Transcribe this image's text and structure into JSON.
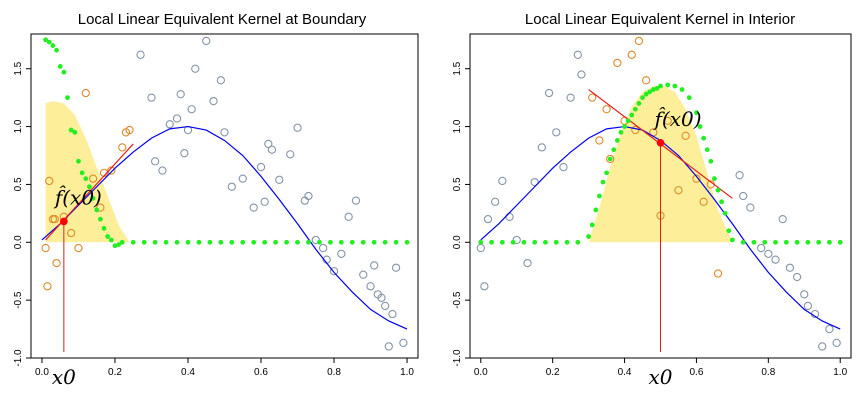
{
  "chart_data": [
    {
      "type": "scatter",
      "title": "Local Linear Equivalent Kernel at Boundary",
      "xlabel": "",
      "ylabel": "",
      "xlim": [
        -0.03,
        1.03
      ],
      "ylim": [
        -1.0,
        1.8
      ],
      "x_ticks": [
        0.0,
        0.2,
        0.4,
        0.6,
        0.8,
        1.0
      ],
      "x_tick_labels": [
        "0.0",
        "0.2",
        "0.4",
        "0.6",
        "0.8",
        "1.0"
      ],
      "y_ticks": [
        -1.0,
        -0.5,
        0.0,
        0.5,
        1.0,
        1.5
      ],
      "y_tick_labels": [
        "-1.0",
        "-0.5",
        "0.0",
        "0.5",
        "1.0",
        "1.5"
      ],
      "x0": 0.06,
      "x0_label": "x0",
      "fit_point": {
        "x": 0.06,
        "y": 0.18
      },
      "fit_label": "f̂(x0)",
      "kernel_region": {
        "x": [
          0.01,
          0.03,
          0.06,
          0.09,
          0.12,
          0.15,
          0.18,
          0.21,
          0.24
        ],
        "y": [
          1.2,
          1.22,
          1.2,
          1.1,
          0.9,
          0.65,
          0.4,
          0.15,
          0.0
        ]
      },
      "true_function": {
        "x": [
          0.0,
          0.05,
          0.1,
          0.15,
          0.2,
          0.25,
          0.3,
          0.35,
          0.4,
          0.45,
          0.5,
          0.55,
          0.6,
          0.65,
          0.7,
          0.75,
          0.8,
          0.85,
          0.9,
          0.95,
          1.0
        ],
        "y": [
          0.02,
          0.16,
          0.32,
          0.48,
          0.64,
          0.78,
          0.9,
          0.98,
          1.0,
          0.97,
          0.88,
          0.75,
          0.57,
          0.37,
          0.16,
          -0.06,
          -0.26,
          -0.43,
          -0.58,
          -0.68,
          -0.75
        ]
      },
      "local_fit_line": {
        "x": [
          0.01,
          0.25
        ],
        "y": [
          0.02,
          0.85
        ]
      },
      "kernel_weights_points": {
        "x": [
          0.01,
          0.02,
          0.03,
          0.04,
          0.05,
          0.06,
          0.07,
          0.08,
          0.09,
          0.1,
          0.11,
          0.12,
          0.13,
          0.14,
          0.15,
          0.16,
          0.17,
          0.18,
          0.19,
          0.2,
          0.21,
          0.22,
          0.25,
          0.28,
          0.31,
          0.34,
          0.37,
          0.4,
          0.43,
          0.46,
          0.49,
          0.52,
          0.55,
          0.58,
          0.61,
          0.64,
          0.67,
          0.7,
          0.73,
          0.76,
          0.79,
          0.82,
          0.85,
          0.88,
          0.91,
          0.94,
          0.97,
          1.0
        ],
        "y": [
          1.75,
          1.73,
          1.7,
          1.66,
          1.52,
          1.47,
          1.25,
          0.97,
          0.95,
          0.7,
          0.6,
          0.55,
          0.48,
          0.38,
          0.28,
          0.2,
          0.12,
          0.05,
          0.02,
          -0.03,
          -0.02,
          0.0,
          0.0,
          0.0,
          0.0,
          0.0,
          0.0,
          0.0,
          0.0,
          0.0,
          0.0,
          0.0,
          0.0,
          0.0,
          0.0,
          0.0,
          0.0,
          0.0,
          0.0,
          0.0,
          0.0,
          0.0,
          0.0,
          0.0,
          0.0,
          0.0,
          0.0,
          0.0
        ]
      },
      "data_in_window": {
        "x": [
          0.01,
          0.015,
          0.02,
          0.03,
          0.035,
          0.04,
          0.06,
          0.08,
          0.1,
          0.12,
          0.14,
          0.16,
          0.17,
          0.19,
          0.22,
          0.23,
          0.24
        ],
        "y": [
          -0.05,
          -0.38,
          0.53,
          0.2,
          0.2,
          -0.18,
          0.22,
          0.08,
          -0.05,
          1.29,
          0.55,
          0.3,
          0.6,
          0.62,
          0.82,
          0.95,
          0.97
        ]
      },
      "data_outside": {
        "x": [
          0.27,
          0.3,
          0.31,
          0.33,
          0.35,
          0.37,
          0.38,
          0.39,
          0.4,
          0.41,
          0.42,
          0.45,
          0.47,
          0.49,
          0.5,
          0.52,
          0.55,
          0.58,
          0.6,
          0.61,
          0.62,
          0.63,
          0.65,
          0.68,
          0.7,
          0.72,
          0.73,
          0.75,
          0.77,
          0.78,
          0.8,
          0.82,
          0.84,
          0.86,
          0.88,
          0.9,
          0.91,
          0.92,
          0.93,
          0.94,
          0.95,
          0.96,
          0.97,
          0.99
        ],
        "y": [
          1.62,
          1.25,
          0.7,
          0.62,
          1.02,
          1.07,
          1.28,
          0.77,
          0.97,
          1.15,
          1.5,
          1.74,
          1.22,
          1.4,
          0.95,
          0.48,
          0.55,
          0.3,
          0.65,
          0.35,
          0.85,
          0.8,
          0.54,
          0.76,
          0.99,
          0.36,
          0.4,
          0.02,
          -0.05,
          -0.15,
          -0.25,
          -0.1,
          0.22,
          0.36,
          -0.28,
          -0.38,
          -0.2,
          -0.45,
          -0.48,
          -0.55,
          -0.9,
          -0.62,
          -0.22,
          -0.87
        ]
      }
    },
    {
      "type": "scatter",
      "title": "Local Linear Equivalent Kernel in Interior",
      "xlabel": "",
      "ylabel": "",
      "xlim": [
        -0.03,
        1.03
      ],
      "ylim": [
        -1.0,
        1.8
      ],
      "x_ticks": [
        0.0,
        0.2,
        0.4,
        0.6,
        0.8,
        1.0
      ],
      "x_tick_labels": [
        "0.0",
        "0.2",
        "0.4",
        "0.6",
        "0.8",
        "1.0"
      ],
      "y_ticks": [
        -1.0,
        -0.5,
        0.0,
        0.5,
        1.0,
        1.5
      ],
      "y_tick_labels": [
        "-1.0",
        "-0.5",
        "0.0",
        "0.5",
        "1.0",
        "1.5"
      ],
      "x0": 0.5,
      "x0_label": "x0",
      "fit_point": {
        "x": 0.5,
        "y": 0.86
      },
      "fit_label": "f̂(x0)",
      "kernel_region": {
        "x": [
          0.3,
          0.33,
          0.36,
          0.39,
          0.42,
          0.45,
          0.48,
          0.51,
          0.54,
          0.57,
          0.6,
          0.63,
          0.66,
          0.7
        ],
        "y": [
          0.0,
          0.3,
          0.65,
          0.95,
          1.17,
          1.3,
          1.35,
          1.35,
          1.3,
          1.15,
          0.92,
          0.6,
          0.28,
          0.0
        ]
      },
      "true_function": {
        "x": [
          0.0,
          0.05,
          0.1,
          0.15,
          0.2,
          0.25,
          0.3,
          0.35,
          0.4,
          0.45,
          0.5,
          0.55,
          0.6,
          0.65,
          0.7,
          0.75,
          0.8,
          0.85,
          0.9,
          0.95,
          1.0
        ],
        "y": [
          0.02,
          0.16,
          0.32,
          0.48,
          0.64,
          0.78,
          0.9,
          0.98,
          1.0,
          0.97,
          0.88,
          0.75,
          0.57,
          0.37,
          0.16,
          -0.06,
          -0.26,
          -0.43,
          -0.58,
          -0.68,
          -0.75
        ]
      },
      "local_fit_line": {
        "x": [
          0.3,
          0.7
        ],
        "y": [
          1.32,
          0.38
        ]
      },
      "kernel_weights_points": {
        "x": [
          0.0,
          0.03,
          0.06,
          0.09,
          0.12,
          0.15,
          0.18,
          0.21,
          0.24,
          0.27,
          0.3,
          0.31,
          0.32,
          0.33,
          0.34,
          0.35,
          0.36,
          0.37,
          0.38,
          0.39,
          0.4,
          0.41,
          0.42,
          0.43,
          0.44,
          0.45,
          0.46,
          0.47,
          0.48,
          0.49,
          0.5,
          0.52,
          0.54,
          0.56,
          0.58,
          0.6,
          0.61,
          0.62,
          0.63,
          0.64,
          0.65,
          0.66,
          0.67,
          0.68,
          0.69,
          0.7,
          0.73,
          0.76,
          0.79,
          0.82,
          0.85,
          0.88,
          0.91,
          0.94,
          0.97,
          1.0
        ],
        "y": [
          0.0,
          0.0,
          0.0,
          0.0,
          0.0,
          0.0,
          0.0,
          0.0,
          0.0,
          0.0,
          0.05,
          0.15,
          0.28,
          0.4,
          0.52,
          0.6,
          0.72,
          0.8,
          0.88,
          0.95,
          1.0,
          1.05,
          1.1,
          1.15,
          1.2,
          1.25,
          1.28,
          1.3,
          1.32,
          1.33,
          1.35,
          1.36,
          1.35,
          1.32,
          1.25,
          1.12,
          1.0,
          0.9,
          0.8,
          0.7,
          0.55,
          0.45,
          0.35,
          0.25,
          0.1,
          0.02,
          0.0,
          0.0,
          0.0,
          0.0,
          0.0,
          0.0,
          0.0,
          0.0,
          0.0,
          0.0
        ]
      },
      "data_in_window": {
        "x": [
          0.31,
          0.33,
          0.35,
          0.36,
          0.38,
          0.4,
          0.42,
          0.43,
          0.44,
          0.46,
          0.48,
          0.5,
          0.52,
          0.55,
          0.57,
          0.6,
          0.62,
          0.64,
          0.66
        ],
        "y": [
          1.25,
          0.88,
          1.15,
          0.72,
          1.55,
          1.05,
          1.62,
          0.97,
          1.74,
          1.4,
          0.95,
          0.23,
          1.05,
          0.45,
          0.92,
          0.55,
          0.35,
          0.5,
          -0.27
        ]
      },
      "data_outside": {
        "x": [
          0.0,
          0.01,
          0.02,
          0.04,
          0.06,
          0.08,
          0.1,
          0.13,
          0.15,
          0.17,
          0.19,
          0.21,
          0.23,
          0.25,
          0.27,
          0.28,
          0.72,
          0.73,
          0.75,
          0.78,
          0.8,
          0.82,
          0.84,
          0.86,
          0.88,
          0.9,
          0.91,
          0.93,
          0.95,
          0.97,
          0.99
        ],
        "y": [
          -0.05,
          -0.38,
          0.2,
          0.35,
          0.53,
          0.22,
          0.02,
          -0.18,
          0.52,
          0.82,
          1.29,
          0.95,
          0.65,
          1.25,
          1.62,
          1.45,
          0.58,
          0.4,
          0.3,
          -0.05,
          -0.1,
          -0.15,
          0.2,
          -0.22,
          -0.3,
          -0.45,
          -0.55,
          -0.62,
          -0.9,
          -0.75,
          -0.87
        ]
      }
    }
  ],
  "colors": {
    "kernel_fill": "#fdef9a",
    "true_function": "#0000ee",
    "local_fit": "#e21b1b",
    "fit_point": "#ff0000",
    "kernel_weights": "#22ee22",
    "data_in_window": "#de8a2a",
    "data_outside": "#8595a8",
    "axis": "#000000"
  }
}
